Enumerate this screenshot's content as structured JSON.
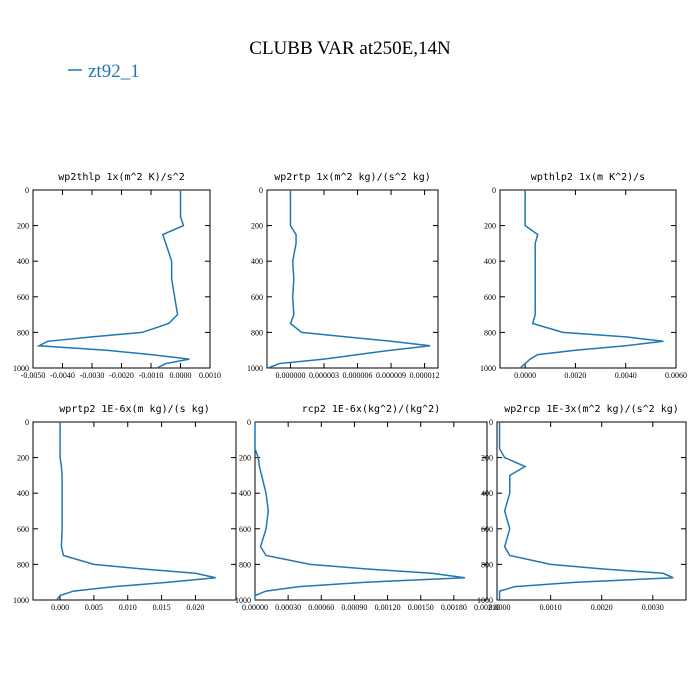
{
  "title": "CLUBB VAR at250E,14N",
  "legend": {
    "name": "zt92_1",
    "color": "#1f77b4"
  },
  "chart_data": [
    {
      "type": "line",
      "title": "wp2thlp  1x(m^2 K)/s^2",
      "y": [
        0,
        100,
        150,
        200,
        250,
        300,
        400,
        500,
        600,
        700,
        750,
        800,
        825,
        850,
        875,
        900,
        925,
        950,
        975,
        1000
      ],
      "values": [
        0,
        0,
        0,
        0.0001,
        -0.0006,
        -0.0005,
        -0.0003,
        -0.0003,
        -0.0002,
        -0.0001,
        -0.0004,
        -0.0013,
        -0.003,
        -0.0045,
        -0.0048,
        -0.0025,
        -0.001,
        0.0003,
        -0.0005,
        -0.0008
      ],
      "xlim": [
        -0.005,
        0.001
      ],
      "xticks": [
        {
          "value": -0.005,
          "label": "-0.0050"
        },
        {
          "value": -0.004,
          "label": "-0.0040"
        },
        {
          "value": -0.003,
          "label": "-0.0030"
        },
        {
          "value": -0.002,
          "label": "-0.0020"
        },
        {
          "value": -0.001,
          "label": "-0.0010"
        },
        {
          "value": 0,
          "label": "0.0000"
        },
        {
          "value": 0.001,
          "label": "0.0010"
        }
      ],
      "ylim": [
        0,
        1000
      ],
      "yticks": [
        0,
        200,
        400,
        600,
        800,
        1000
      ],
      "y_inverted": true,
      "color": "#1f77b4"
    },
    {
      "type": "line",
      "title": "wp2rtp  1x(m^2 kg)/(s^2 kg)",
      "y": [
        0,
        100,
        150,
        200,
        250,
        300,
        400,
        500,
        600,
        700,
        750,
        800,
        825,
        850,
        875,
        900,
        925,
        950,
        975,
        1000
      ],
      "values": [
        0,
        0,
        0,
        0,
        5e-07,
        5e-07,
        2e-07,
        3e-07,
        2e-07,
        3e-07,
        0,
        1e-06,
        5e-06,
        9e-06,
        1.25e-05,
        9e-06,
        6e-06,
        3e-06,
        -1e-06,
        -2e-06
      ],
      "xlim": [
        -2.1e-06,
        1.32e-05
      ],
      "xticks": [
        {
          "value": 0,
          "label": "0.000000"
        },
        {
          "value": 3e-06,
          "label": "0.000003"
        },
        {
          "value": 6e-06,
          "label": "0.000006"
        },
        {
          "value": 9e-06,
          "label": "0.000009"
        },
        {
          "value": 1.2e-05,
          "label": "0.000012"
        }
      ],
      "ylim": [
        0,
        1000
      ],
      "yticks": [
        0,
        200,
        400,
        600,
        800,
        1000
      ],
      "y_inverted": true,
      "color": "#1f77b4"
    },
    {
      "type": "line",
      "title": "wpthlp2  1x(m K^2)/s",
      "y": [
        0,
        100,
        150,
        200,
        250,
        300,
        400,
        500,
        600,
        700,
        750,
        800,
        825,
        850,
        875,
        900,
        925,
        950,
        975,
        1000
      ],
      "values": [
        0,
        0,
        0,
        0,
        0.0005,
        0.0004,
        0.0004,
        0.0004,
        0.0004,
        0.0004,
        0.0003,
        0.0015,
        0.004,
        0.0055,
        0.004,
        0.002,
        0.0005,
        0.0002,
        0,
        -0.0002
      ],
      "xlim": [
        -0.001,
        0.006
      ],
      "xticks": [
        {
          "value": 0,
          "label": "0.0000"
        },
        {
          "value": 0.002,
          "label": "0.0020"
        },
        {
          "value": 0.004,
          "label": "0.0040"
        },
        {
          "value": 0.006,
          "label": "0.0060"
        }
      ],
      "ylim": [
        0,
        1000
      ],
      "yticks": [
        0,
        200,
        400,
        600,
        800,
        1000
      ],
      "y_inverted": true,
      "color": "#1f77b4"
    },
    {
      "type": "line",
      "title": "wprtp2  1E-6x(m kg)/(s kg)",
      "y": [
        0,
        100,
        150,
        200,
        250,
        300,
        400,
        500,
        600,
        700,
        750,
        800,
        825,
        850,
        875,
        900,
        925,
        950,
        975,
        1000
      ],
      "values": [
        0,
        0,
        0,
        0,
        0.0002,
        0.0003,
        0.0003,
        0.0003,
        0.0003,
        0.0002,
        0.0005,
        0.005,
        0.012,
        0.02,
        0.023,
        0.016,
        0.008,
        0.002,
        0,
        -0.0005
      ],
      "xlim": [
        -0.004,
        0.026
      ],
      "xticks": [
        {
          "value": 0,
          "label": "0.000"
        },
        {
          "value": 0.005,
          "label": "0.005"
        },
        {
          "value": 0.01,
          "label": "0.010"
        },
        {
          "value": 0.015,
          "label": "0.015"
        },
        {
          "value": 0.02,
          "label": "0.020"
        }
      ],
      "ylim": [
        0,
        1000
      ],
      "yticks": [
        0,
        200,
        400,
        600,
        800,
        1000
      ],
      "y_inverted": true,
      "color": "#1f77b4"
    },
    {
      "type": "line",
      "title": "rcp2  1E-6x(kg^2)/(kg^2)",
      "y": [
        0,
        100,
        150,
        200,
        250,
        300,
        400,
        500,
        600,
        700,
        750,
        800,
        825,
        850,
        875,
        900,
        925,
        950,
        975,
        1000
      ],
      "values": [
        0,
        0,
        0,
        3e-05,
        4e-05,
        6e-05,
        0.0001,
        0.00012,
        0.0001,
        5e-05,
        0.0001,
        0.0005,
        0.001,
        0.0016,
        0.0019,
        0.001,
        0.0004,
        0.0001,
        0,
        0
      ],
      "xlim": [
        0,
        0.0021
      ],
      "xticks": [
        {
          "value": 0,
          "label": "0.00000"
        },
        {
          "value": 0.0003,
          "label": "0.00030"
        },
        {
          "value": 0.0006,
          "label": "0.00060"
        },
        {
          "value": 0.0009,
          "label": "0.00090"
        },
        {
          "value": 0.0012,
          "label": "0.00120"
        },
        {
          "value": 0.0015,
          "label": "0.00150"
        },
        {
          "value": 0.0018,
          "label": "0.00180"
        },
        {
          "value": 0.0021,
          "label": "0.00210"
        }
      ],
      "ylim": [
        0,
        1000
      ],
      "yticks": [
        0,
        200,
        400,
        600,
        800,
        1000
      ],
      "y_inverted": true,
      "color": "#1f77b4"
    },
    {
      "type": "line",
      "title": "wp2rcp  1E-3x(m^2 kg)/(s^2 kg)",
      "y": [
        0,
        100,
        150,
        200,
        250,
        300,
        400,
        500,
        600,
        700,
        750,
        800,
        825,
        850,
        875,
        900,
        925,
        950,
        975,
        1000
      ],
      "values": [
        0,
        0,
        0,
        0.0001,
        0.0005,
        0.0002,
        0.0002,
        0.0001,
        0.0002,
        0.0001,
        0.0002,
        0.001,
        0.002,
        0.0032,
        0.0034,
        0.0015,
        0.0003,
        0,
        0,
        0
      ],
      "xlim": [
        -5e-05,
        0.00365
      ],
      "xticks": [
        {
          "value": 0,
          "label": "0.0000"
        },
        {
          "value": 0.001,
          "label": "0.0010"
        },
        {
          "value": 0.002,
          "label": "0.0020"
        },
        {
          "value": 0.003,
          "label": "0.0030"
        }
      ],
      "ylim": [
        0,
        1000
      ],
      "yticks": [
        0,
        200,
        400,
        600,
        800,
        1000
      ],
      "y_inverted": true,
      "color": "#1f77b4"
    }
  ]
}
